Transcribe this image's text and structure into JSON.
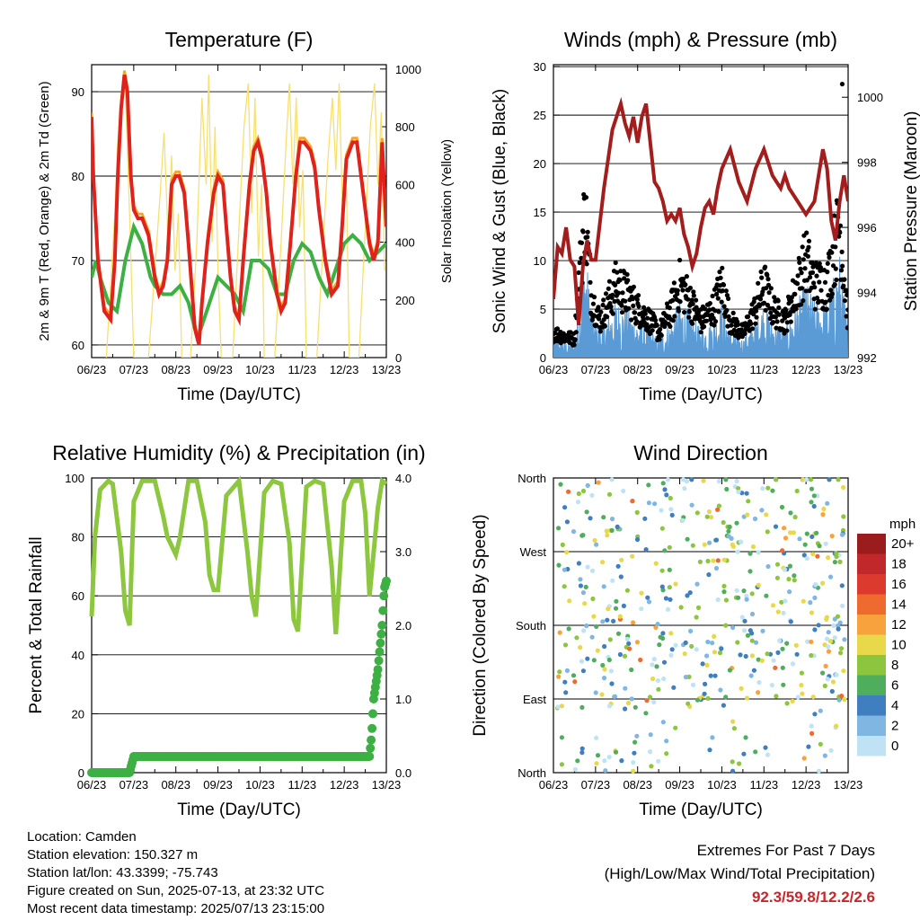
{
  "x_ticks": [
    "06/23",
    "07/23",
    "08/23",
    "09/23",
    "10/23",
    "11/23",
    "12/23",
    "13/23"
  ],
  "x_label": "Time (Day/UTC)",
  "info": {
    "location": "Location: Camden",
    "elevation": "Station elevation: 150.327 m",
    "latlon": "Station lat/lon: 43.3399; -75.743",
    "created": "Figure created on Sun, 2025-07-13, at 23:32 UTC",
    "timestamp": "Most recent data timestamp: 2025/07/13 23:15:00"
  },
  "extremes": {
    "title": "Extremes For Past 7 Days",
    "subtitle": "(High/Low/Max Wind/Total Precipitation)",
    "values": "92.3/59.8/12.2/2.6"
  },
  "colors": {
    "temp2m": "#e0221c",
    "temp9m": "#f5a623",
    "dewpoint": "#3cb043",
    "solar": "#f7e06e",
    "pressure": "#a31d1d",
    "wind": "#5b9bd5",
    "gust": "#000000",
    "rh": "#8dc63f",
    "rain": "#3cb043"
  },
  "chart_data": [
    {
      "type": "line",
      "title": "Temperature (F)",
      "xlabel": "Time (Day/UTC)",
      "ylabel": "2m & 9m T (Red, Orange) & 2m Td (Green)",
      "y2label": "Solar Insolation (Yellow)",
      "ylim": [
        58.5,
        93.2
      ],
      "yticks": [
        60,
        70,
        80,
        90
      ],
      "y2lim": [
        0,
        1015
      ],
      "y2ticks": [
        0,
        200,
        400,
        600,
        800,
        1000
      ],
      "series": [
        {
          "key": "temp",
          "x": [
            0,
            0.04,
            0.15,
            0.3,
            0.45,
            0.55,
            0.62,
            0.7,
            0.78,
            0.85,
            0.93,
            1.0,
            1.1,
            1.2,
            1.35,
            1.5,
            1.6,
            1.7,
            1.8,
            1.9,
            2.0,
            2.08,
            2.2,
            2.3,
            2.45,
            2.55,
            2.62,
            2.75,
            2.9,
            3.0,
            3.12,
            3.2,
            3.3,
            3.4,
            3.5,
            3.6,
            3.75,
            3.85,
            3.95,
            4.05,
            4.15,
            4.25,
            4.4,
            4.5,
            4.6,
            4.72,
            4.85,
            4.95,
            5.05,
            5.2,
            5.3,
            5.4,
            5.55,
            5.7,
            5.85,
            5.95,
            6.05,
            6.2,
            6.3,
            6.4,
            6.5,
            6.6,
            6.7,
            6.8,
            6.9,
            7.0
          ],
          "y": [
            87,
            80,
            70,
            64,
            63,
            70,
            80,
            88,
            92,
            90,
            80,
            76,
            75,
            75,
            73,
            68,
            66,
            67,
            70,
            79,
            80,
            80,
            78,
            72,
            62,
            60,
            65,
            72,
            78,
            80,
            79,
            74,
            68,
            64,
            63,
            70,
            79,
            83,
            84,
            82,
            78,
            72,
            66,
            64,
            65,
            72,
            80,
            84,
            84,
            83,
            81,
            76,
            70,
            66,
            67,
            74,
            82,
            84,
            84,
            80,
            76,
            72,
            70,
            72,
            84,
            74
          ]
        },
        {
          "key": "dew",
          "x": [
            0,
            0.1,
            0.2,
            0.4,
            0.6,
            0.8,
            1.0,
            1.2,
            1.4,
            1.5,
            1.7,
            1.9,
            2.1,
            2.3,
            2.5,
            2.6,
            2.8,
            3.0,
            3.2,
            3.4,
            3.6,
            3.8,
            4.0,
            4.2,
            4.4,
            4.6,
            4.8,
            5.0,
            5.2,
            5.4,
            5.6,
            5.8,
            6.0,
            6.2,
            6.4,
            6.6,
            6.8,
            7.0
          ],
          "y": [
            68,
            70,
            68,
            65,
            64,
            70,
            74,
            72,
            68,
            67,
            66,
            66,
            67,
            65,
            61,
            62,
            65,
            68,
            67,
            66,
            64,
            70,
            70,
            69,
            66,
            66,
            70,
            72,
            71,
            68,
            66,
            69,
            72,
            73,
            72,
            70,
            71,
            72
          ]
        },
        {
          "key": "solar",
          "x": [
            0.35,
            0.45,
            0.55,
            0.62,
            0.7,
            0.77,
            0.82,
            0.9,
            1.0,
            1.35,
            1.5,
            1.62,
            1.72,
            1.82,
            1.9,
            1.98,
            2.06,
            2.14,
            2.35,
            2.5,
            2.62,
            2.72,
            2.78,
            2.86,
            2.93,
            3.0,
            3.08,
            3.35,
            3.5,
            3.62,
            3.72,
            3.8,
            3.88,
            3.96,
            4.04,
            4.1,
            4.35,
            4.5,
            4.62,
            4.7,
            4.78,
            4.86,
            4.94,
            5.02,
            5.1,
            5.35,
            5.5,
            5.62,
            5.72,
            5.8,
            5.88,
            5.96,
            6.04,
            6.12,
            6.35,
            6.5,
            6.62,
            6.72,
            6.8,
            6.88,
            6.96
          ],
          "y": [
            0,
            250,
            500,
            750,
            900,
            960,
            850,
            500,
            0,
            0,
            300,
            550,
            780,
            400,
            700,
            300,
            500,
            0,
            0,
            400,
            900,
            600,
            980,
            400,
            800,
            300,
            0,
            0,
            450,
            800,
            950,
            500,
            900,
            350,
            600,
            0,
            0,
            400,
            750,
            950,
            600,
            900,
            450,
            650,
            0,
            0,
            400,
            700,
            900,
            650,
            950,
            500,
            700,
            0,
            0,
            450,
            800,
            950,
            600,
            850,
            300
          ]
        }
      ]
    },
    {
      "type": "line",
      "title": "Winds (mph) & Pressure (mb)",
      "xlabel": "Time (Day/UTC)",
      "ylabel": "Sonic Wind & Gust (Blue, Black)",
      "y2label": "Station Pressure (Maroon)",
      "ylim": [
        0,
        30.2
      ],
      "yticks": [
        0,
        5,
        10,
        15,
        20,
        25,
        30
      ],
      "y2lim": [
        992,
        1001.0
      ],
      "y2ticks": [
        992,
        994,
        996,
        998,
        1000
      ],
      "series": [
        {
          "key": "pressure",
          "x": [
            0,
            0.1,
            0.2,
            0.3,
            0.4,
            0.5,
            0.6,
            0.7,
            0.8,
            0.9,
            1.0,
            1.2,
            1.4,
            1.6,
            1.7,
            1.8,
            1.9,
            2.0,
            2.1,
            2.2,
            2.3,
            2.4,
            2.5,
            2.6,
            2.7,
            2.8,
            2.9,
            3.0,
            3.1,
            3.2,
            3.3,
            3.4,
            3.5,
            3.6,
            3.7,
            3.8,
            3.9,
            4.0,
            4.2,
            4.4,
            4.6,
            4.8,
            5.0,
            5.2,
            5.3,
            5.4,
            5.5,
            5.6,
            5.8,
            6.0,
            6.2,
            6.4,
            6.5,
            6.6,
            6.7,
            6.8,
            6.9,
            7.0
          ],
          "y": [
            993.8,
            995.4,
            995.2,
            996.0,
            995.0,
            994.8,
            993.0,
            994.8,
            995.6,
            995.0,
            995.0,
            997.2,
            999.0,
            999.8,
            999.2,
            998.8,
            999.4,
            998.6,
            999.4,
            999.8,
            998.6,
            997.4,
            997.2,
            996.8,
            996.2,
            996.4,
            996.2,
            996.6,
            995.8,
            995.4,
            994.8,
            995.2,
            996.0,
            996.6,
            996.8,
            996.4,
            997.2,
            997.8,
            998.4,
            997.4,
            996.8,
            997.8,
            998.4,
            997.6,
            997.4,
            997.2,
            997.6,
            997.2,
            996.8,
            996.4,
            996.8,
            998.4,
            997.8,
            996.2,
            995.6,
            996.8,
            997.6,
            996.8
          ]
        },
        {
          "key": "wind_env",
          "x": [
            0,
            0.5,
            0.65,
            0.75,
            0.9,
            1.1,
            1.5,
            1.8,
            2.0,
            2.3,
            2.5,
            2.8,
            3.0,
            3.2,
            3.5,
            3.8,
            4.0,
            4.2,
            4.5,
            4.8,
            5.0,
            5.2,
            5.5,
            5.8,
            6.0,
            6.2,
            6.5,
            6.8,
            7.0
          ],
          "y": [
            2,
            1.5,
            8,
            12,
            5,
            3,
            6,
            5,
            4,
            3,
            2,
            4,
            6,
            5,
            3,
            4,
            6,
            3,
            2,
            4,
            6,
            4,
            3,
            6,
            8,
            6,
            6,
            11,
            3
          ]
        }
      ],
      "max_gust": 28.2
    },
    {
      "type": "line",
      "title": "Relative Humidity (%) & Precipitation (in)",
      "xlabel": "Time (Day/UTC)",
      "ylabel": "Percent & Total Rainfall",
      "ylim": [
        0,
        100
      ],
      "yticks": [
        0,
        20,
        40,
        60,
        80,
        100
      ],
      "y2lim": [
        0,
        4.0
      ],
      "y2ticks": [
        "0.0",
        "1.0",
        "2.0",
        "3.0",
        "4.0"
      ],
      "series": [
        {
          "key": "rh",
          "x": [
            0,
            0.08,
            0.2,
            0.4,
            0.5,
            0.7,
            0.8,
            0.9,
            1.0,
            1.2,
            1.5,
            1.7,
            1.8,
            2.0,
            2.1,
            2.3,
            2.5,
            2.7,
            2.8,
            2.9,
            3.0,
            3.2,
            3.5,
            3.7,
            3.8,
            3.9,
            4.1,
            4.3,
            4.5,
            4.7,
            4.8,
            4.9,
            5.1,
            5.3,
            5.5,
            5.7,
            5.8,
            6.0,
            6.2,
            6.4,
            6.5,
            6.6,
            6.8,
            6.9,
            7.0
          ],
          "y": [
            53,
            80,
            96,
            99,
            98,
            75,
            55,
            50,
            92,
            99,
            99,
            87,
            80,
            74,
            80,
            99,
            99,
            85,
            67,
            62,
            62,
            94,
            99,
            75,
            60,
            53,
            95,
            99,
            98,
            78,
            52,
            48,
            97,
            99,
            98,
            70,
            47,
            92,
            99,
            99,
            88,
            60,
            90,
            99,
            98
          ]
        },
        {
          "key": "rain",
          "x": [
            0,
            0.6,
            0.9,
            1.0,
            6.6,
            6.65,
            6.7,
            6.8,
            6.85,
            6.9,
            6.95,
            7.0
          ],
          "y": [
            0,
            0,
            0,
            0.22,
            0.22,
            0.5,
            1.0,
            1.4,
            1.7,
            2.0,
            2.5,
            2.6
          ]
        }
      ]
    },
    {
      "type": "scatter",
      "title": "Wind Direction",
      "xlabel": "Time (Day/UTC)",
      "ylabel": "Direction (Colored By Speed)",
      "yticks": [
        "North",
        "East",
        "South",
        "West",
        "North"
      ],
      "ylim": [
        0,
        360
      ],
      "colorbar": {
        "unit": "mph",
        "labels": [
          "20+",
          "18",
          "16",
          "14",
          "12",
          "10",
          "8",
          "6",
          "4",
          "2",
          "0"
        ],
        "colors": [
          "#9b1c1c",
          "#c0282c",
          "#db3a2c",
          "#ef6a2e",
          "#f7a23c",
          "#e8d84a",
          "#8cc63e",
          "#4fae5d",
          "#3f7fbf",
          "#7fb6e2",
          "#bfe3f5"
        ]
      }
    }
  ]
}
